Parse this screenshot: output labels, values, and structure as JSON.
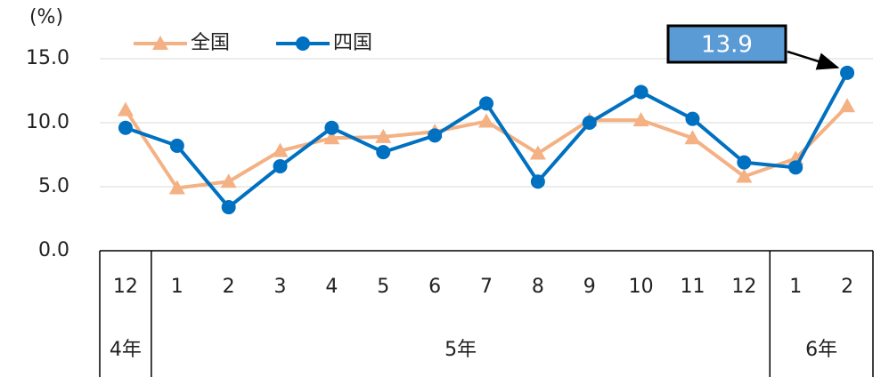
{
  "chart_data": {
    "type": "line",
    "y_axis_label": "(%)",
    "categories": [
      "12",
      "1",
      "2",
      "3",
      "4",
      "5",
      "6",
      "7",
      "8",
      "9",
      "10",
      "11",
      "12",
      "1",
      "2"
    ],
    "category_groups": [
      {
        "label": "4年",
        "count": 1
      },
      {
        "label": "5年",
        "count": 12
      },
      {
        "label": "6年",
        "count": 2
      }
    ],
    "series": [
      {
        "name": "全国",
        "color": "#f4b183",
        "marker": "triangle",
        "values": [
          11.0,
          4.9,
          5.4,
          7.8,
          8.8,
          8.9,
          9.3,
          10.1,
          7.6,
          10.2,
          10.2,
          8.8,
          5.8,
          7.2,
          11.3
        ]
      },
      {
        "name": "四国",
        "color": "#0070c0",
        "marker": "circle",
        "values": [
          9.6,
          8.2,
          3.4,
          6.6,
          9.6,
          7.7,
          9.0,
          11.5,
          5.4,
          10.0,
          12.4,
          10.3,
          6.9,
          6.5,
          13.9
        ]
      }
    ],
    "annotation": {
      "text": "13.9",
      "series": 1,
      "index": 14,
      "color": "#5b9bd5"
    },
    "ylim": [
      0,
      15
    ],
    "yticks": [
      {
        "value": 0,
        "label": "0.0"
      },
      {
        "value": 5,
        "label": "5.0"
      },
      {
        "value": 10,
        "label": "10.0"
      },
      {
        "value": 15,
        "label": "15.0"
      }
    ],
    "grid": true
  }
}
